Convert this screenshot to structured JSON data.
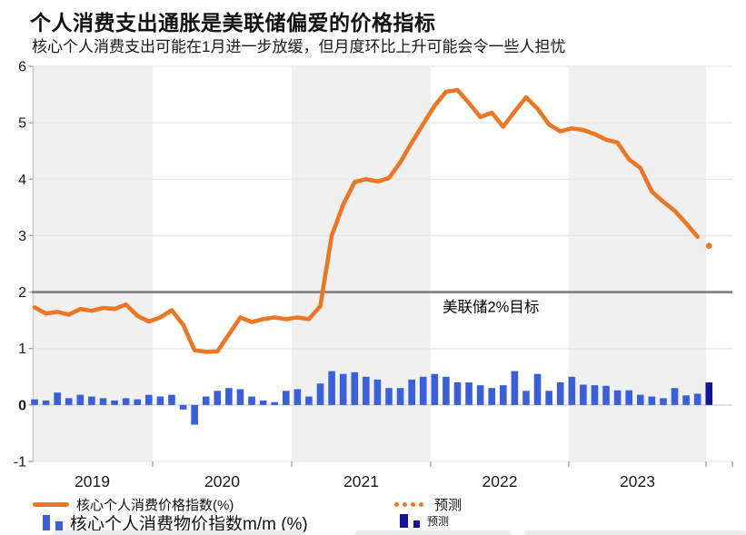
{
  "header": {
    "title": "个人消费支出通胀是美联储偏爱的价格指标",
    "subtitle": "核心个人消费支出可能在1月进一步放缓，但月度环比上升可能会令一些人担忧"
  },
  "chart_data": {
    "type": "line+bar",
    "title": "个人消费支出通胀是美联储偏爱的价格指标",
    "x_start_month": "2019-02",
    "x_end_month": "2024-01",
    "x_tick_labels": [
      "2019",
      "2020",
      "2021",
      "2022",
      "2023"
    ],
    "shaded_years": [
      "2019",
      "2021",
      "2023"
    ],
    "ylim": [
      -1,
      6
    ],
    "y_tick_labels": [
      "6",
      "5",
      "4",
      "3",
      "2",
      "1",
      "0",
      "-1"
    ],
    "grid": true,
    "legend_position": "bottom",
    "annotation": {
      "text": "美联储2%目标",
      "y": 2
    },
    "target_line_y": 2,
    "line_series": {
      "name": "核心个人消费价格指数(%)",
      "values": [
        1.73,
        1.62,
        1.65,
        1.6,
        1.7,
        1.67,
        1.72,
        1.7,
        1.78,
        1.58,
        1.48,
        1.55,
        1.68,
        1.42,
        0.97,
        0.94,
        0.95,
        1.25,
        1.55,
        1.47,
        1.52,
        1.55,
        1.52,
        1.55,
        1.52,
        1.75,
        3.0,
        3.55,
        3.95,
        4.0,
        3.96,
        4.02,
        4.3,
        4.65,
        4.98,
        5.3,
        5.55,
        5.58,
        5.35,
        5.1,
        5.18,
        4.93,
        5.2,
        5.45,
        5.25,
        4.97,
        4.85,
        4.9,
        4.87,
        4.8,
        4.7,
        4.65,
        4.35,
        4.2,
        3.78,
        3.6,
        3.44,
        3.22,
        2.98
      ],
      "forecast": {
        "label": "预测",
        "month": "2024-01",
        "value": 2.82,
        "style": "dot"
      }
    },
    "bar_series": {
      "name": "核心个人消费物价指数m/m (%)",
      "values": [
        0.1,
        0.08,
        0.22,
        0.12,
        0.18,
        0.15,
        0.12,
        0.08,
        0.12,
        0.1,
        0.18,
        0.15,
        0.18,
        -0.08,
        -0.35,
        0.15,
        0.25,
        0.3,
        0.28,
        0.15,
        0.08,
        0.05,
        0.25,
        0.28,
        0.15,
        0.38,
        0.6,
        0.55,
        0.58,
        0.5,
        0.45,
        0.3,
        0.3,
        0.45,
        0.5,
        0.55,
        0.5,
        0.4,
        0.4,
        0.35,
        0.3,
        0.35,
        0.6,
        0.25,
        0.55,
        0.25,
        0.4,
        0.5,
        0.36,
        0.35,
        0.34,
        0.26,
        0.26,
        0.18,
        0.15,
        0.12,
        0.3,
        0.17,
        0.2
      ],
      "forecast": {
        "label": "预测",
        "month": "2024-01",
        "value": 0.4
      }
    },
    "colors": {
      "line": "#ED7625",
      "bar": "#3A5FDD",
      "forecast_bar": "#14129B",
      "target_line": "#7F7F7F",
      "year_band": "#F0F0F0",
      "grid": "#E6E6E6",
      "zero_line": "#CFCFCF",
      "text": "#1A1A1A"
    }
  },
  "legend": {
    "line_label": "核心个人消费价格指数(%)",
    "line_forecast_label": "预测",
    "bar_label": "核心个人消费物价指数m/m (%)",
    "bar_forecast_label": "预测"
  }
}
